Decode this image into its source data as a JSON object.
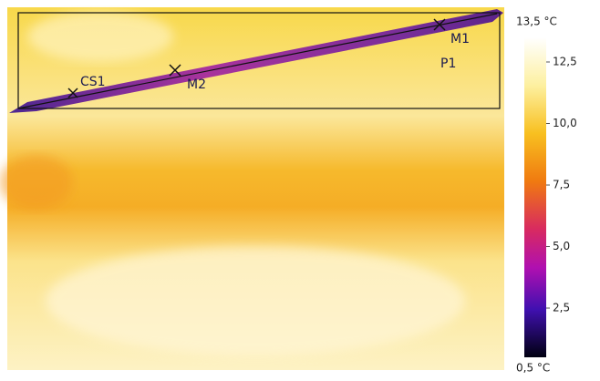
{
  "thermal_image": {
    "markers": [
      {
        "label": "CS1"
      },
      {
        "label": "M2"
      },
      {
        "label": "M1"
      },
      {
        "label": "P1"
      }
    ]
  },
  "scale": {
    "max_label": "13,5 °C",
    "min_label": "0,5 °C",
    "lim": [
      0.5,
      13.5
    ],
    "ticks": [
      {
        "value": 12.5,
        "label": "12,5"
      },
      {
        "value": 10,
        "label": "10,0"
      },
      {
        "value": 7.5,
        "label": "7,5"
      },
      {
        "value": 5,
        "label": "5,0"
      },
      {
        "value": 2.5,
        "label": "2,5"
      }
    ]
  }
}
